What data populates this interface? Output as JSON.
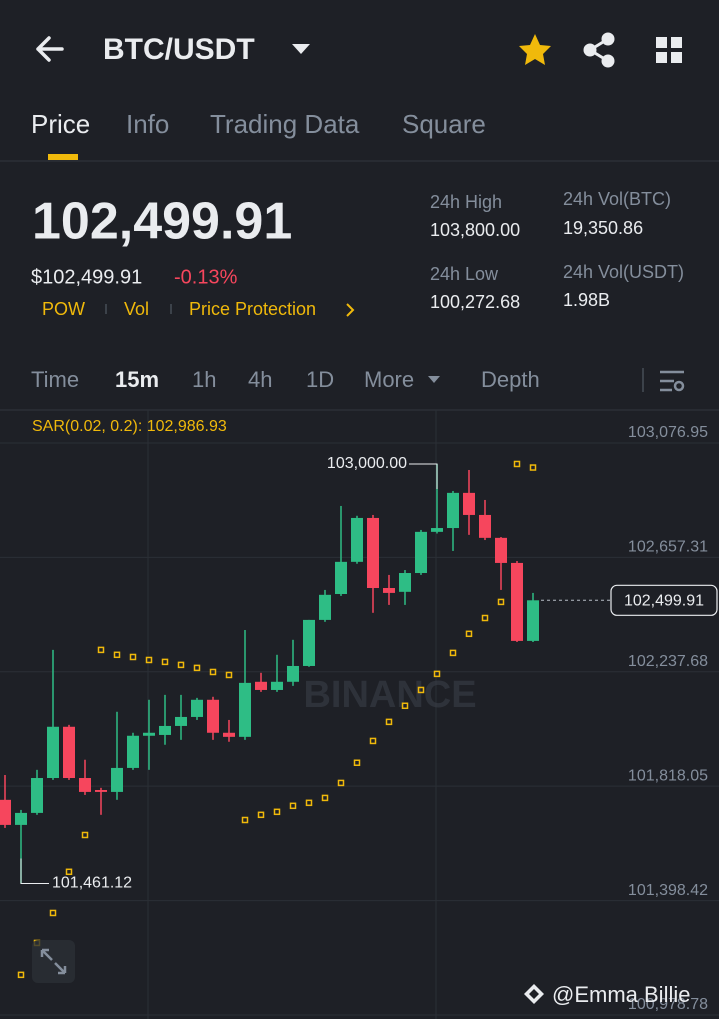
{
  "header": {
    "title": "BTC/USDT"
  },
  "tabs": {
    "items": [
      "Price",
      "Info",
      "Trading Data",
      "Square"
    ],
    "active": 0
  },
  "price": {
    "last": "102,499.91",
    "usd": "$102,499.91",
    "change": "-0.13%"
  },
  "tags": [
    "POW",
    "Vol",
    "Price Protection"
  ],
  "stats": [
    {
      "label": "24h High",
      "value": "103,800.00"
    },
    {
      "label": "24h Vol(BTC)",
      "value": "19,350.86"
    },
    {
      "label": "24h Low",
      "value": "100,272.68"
    },
    {
      "label": "24h Vol(USDT)",
      "value": "1.98B"
    }
  ],
  "timeframes": {
    "items": [
      "Time",
      "15m",
      "1h",
      "4h",
      "1D",
      "More",
      "Depth"
    ],
    "active": 1
  },
  "chart_data": {
    "type": "candlestick",
    "sar_label": "SAR(0.02, 0.2): 102,986.93",
    "up_color": "#2ebd85",
    "down_color": "#f6465d",
    "sar_color": "#f0b90b",
    "ylim": [
      100964,
      103198
    ],
    "yticks": [
      {
        "value": 103076.95,
        "label": "103,076.95"
      },
      {
        "value": 102657.31,
        "label": "102,657.31"
      },
      {
        "value": 102237.68,
        "label": "102,237.68"
      },
      {
        "value": 101818.05,
        "label": "101,818.05"
      },
      {
        "value": 101398.42,
        "label": "101,398.42"
      },
      {
        "value": 100978.78,
        "label": "100,978.78"
      }
    ],
    "grid": true,
    "open": [
      101768,
      101676,
      101720,
      101848,
      102036,
      101848,
      101804,
      101797,
      101885,
      102003,
      102006,
      102039,
      102072,
      102135,
      102014,
      101999,
      102201,
      102171,
      102201,
      102259,
      102428,
      102523,
      102641,
      102802,
      102545,
      102531,
      102600,
      102751,
      102765,
      102894,
      102813,
      102729,
      102637,
      102351
    ],
    "high": [
      101859,
      101731,
      101878,
      102318,
      102043,
      101915,
      101812,
      102091,
      102014,
      102135,
      102153,
      102153,
      102142,
      102146,
      102061,
      102391,
      102234,
      102300,
      102355,
      102428,
      102538,
      102846,
      102810,
      102813,
      102593,
      102611,
      102758,
      103000,
      102901,
      102978,
      102868,
      102732,
      102644,
      102527
    ],
    "low": [
      101665,
      101461.12,
      101713,
      101841,
      101841,
      101786,
      101713,
      101768,
      101878,
      101878,
      101970,
      101988,
      102061,
      101988,
      101981,
      101988,
      102164,
      102164,
      102186,
      102256,
      102421,
      102516,
      102634,
      102454,
      102483,
      102483,
      102593,
      102745,
      102681,
      102740,
      102721,
      102538,
      102347,
      102347
    ],
    "close": [
      101676,
      101720,
      101848,
      102036,
      101848,
      101797,
      101797,
      101885,
      102003,
      102014,
      102039,
      102072,
      102135,
      102014,
      101999,
      102197,
      102171,
      102201,
      102259,
      102428,
      102520,
      102641,
      102802,
      102545,
      102527,
      102600,
      102751,
      102765,
      102894,
      102813,
      102729,
      102637,
      102351,
      102499.91
    ],
    "sar": [
      null,
      101126,
      101243,
      101353,
      101504,
      101639,
      102318,
      102300,
      102292,
      102281,
      102274,
      102263,
      102252,
      102237,
      102226,
      101694,
      101713,
      101724,
      101746,
      101757,
      101775,
      101830,
      101904,
      101984,
      102054,
      102113,
      102171,
      102230,
      102307,
      102377,
      102435,
      102494,
      103000,
      102986.93
    ],
    "annotations": [
      {
        "value": 103000,
        "label": "103,000.00",
        "index": 27
      },
      {
        "value": 101461.12,
        "label": "101,461.12",
        "index": 1
      }
    ],
    "last_price": {
      "value": 102499.91,
      "label": "102,499.91"
    },
    "watermark": "BINANCE"
  },
  "credit": "@Emma Billie"
}
